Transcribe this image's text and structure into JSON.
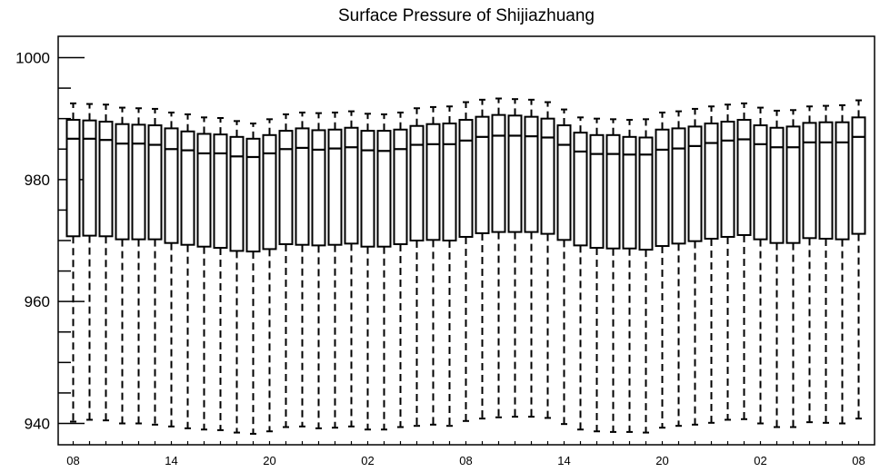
{
  "chart_data": {
    "type": "box",
    "title": "Surface Pressure of Shijiazhuang",
    "xlabel": "",
    "ylabel": "",
    "ylim": [
      936.5,
      1003.5
    ],
    "y_ticks": [
      940,
      960,
      980,
      1000
    ],
    "y_tick_labels": [
      "940",
      "960",
      "980",
      "1000"
    ],
    "x_tick_labels": [
      "08",
      "14",
      "20",
      "02",
      "08",
      "14",
      "20",
      "02",
      "08"
    ],
    "x_tick_box_index": [
      0,
      6,
      12,
      18,
      24,
      30,
      36,
      42,
      48
    ],
    "box_count": 49,
    "q1": [
      970.7,
      970.8,
      970.7,
      970.2,
      970.2,
      970.2,
      969.6,
      969.3,
      969.0,
      968.8,
      968.3,
      968.2,
      968.6,
      969.4,
      969.3,
      969.2,
      969.3,
      969.5,
      969.0,
      969.0,
      969.4,
      970.0,
      970.1,
      970.0,
      970.6,
      971.2,
      971.4,
      971.4,
      971.4,
      971.1,
      970.1,
      969.2,
      968.8,
      968.7,
      968.7,
      968.5,
      969.1,
      969.5,
      969.9,
      970.3,
      970.6,
      970.9,
      970.2,
      969.6,
      969.6,
      970.4,
      970.3,
      970.2,
      971.1
    ],
    "median": [
      986.7,
      986.7,
      986.5,
      985.9,
      985.9,
      985.7,
      985.0,
      984.8,
      984.3,
      984.3,
      983.8,
      983.7,
      984.3,
      985.0,
      985.2,
      984.9,
      985.1,
      985.3,
      984.8,
      984.7,
      985.0,
      985.7,
      985.8,
      985.8,
      986.4,
      987.0,
      987.2,
      987.2,
      987.1,
      986.9,
      985.7,
      984.6,
      984.2,
      984.2,
      984.1,
      984.1,
      984.9,
      985.1,
      985.5,
      986.0,
      986.4,
      986.6,
      985.8,
      985.3,
      985.3,
      986.1,
      986.1,
      986.1,
      987.0
    ],
    "q3": [
      989.8,
      989.7,
      989.5,
      989.1,
      989.0,
      988.9,
      988.4,
      987.9,
      987.5,
      987.4,
      987.0,
      986.7,
      987.3,
      988.0,
      988.4,
      988.1,
      988.2,
      988.5,
      988.0,
      988.0,
      988.2,
      988.8,
      989.1,
      989.2,
      989.8,
      990.3,
      990.6,
      990.5,
      990.3,
      990.0,
      988.9,
      987.7,
      987.3,
      987.3,
      987.0,
      986.9,
      988.2,
      988.4,
      988.7,
      989.2,
      989.5,
      989.8,
      988.9,
      988.5,
      988.7,
      989.3,
      989.4,
      989.4,
      990.2
    ],
    "whisker_high": [
      992.5,
      992.4,
      992.3,
      991.8,
      991.7,
      991.6,
      991.0,
      990.7,
      990.2,
      990.1,
      989.6,
      989.2,
      989.9,
      990.7,
      991.0,
      990.9,
      991.0,
      991.2,
      990.8,
      990.7,
      991.0,
      991.7,
      991.9,
      992.0,
      992.7,
      993.1,
      993.3,
      993.2,
      993.1,
      992.7,
      991.5,
      990.2,
      990.0,
      989.9,
      989.8,
      989.9,
      991.0,
      991.2,
      991.6,
      992.0,
      992.3,
      992.5,
      991.8,
      991.3,
      991.4,
      992.0,
      992.1,
      992.2,
      993.0
    ],
    "whisker_low": [
      940.3,
      940.6,
      940.5,
      940.0,
      940.0,
      939.8,
      939.5,
      939.2,
      939.0,
      938.9,
      938.5,
      938.3,
      938.7,
      939.4,
      939.5,
      939.2,
      939.3,
      939.5,
      939.0,
      939.0,
      939.4,
      939.6,
      939.8,
      939.6,
      940.4,
      940.8,
      941.0,
      941.1,
      941.1,
      940.9,
      939.9,
      939.0,
      938.7,
      938.6,
      938.6,
      938.5,
      939.3,
      939.6,
      939.8,
      940.1,
      940.6,
      940.7,
      940.0,
      939.4,
      939.4,
      940.2,
      940.1,
      940.0,
      940.8
    ]
  }
}
